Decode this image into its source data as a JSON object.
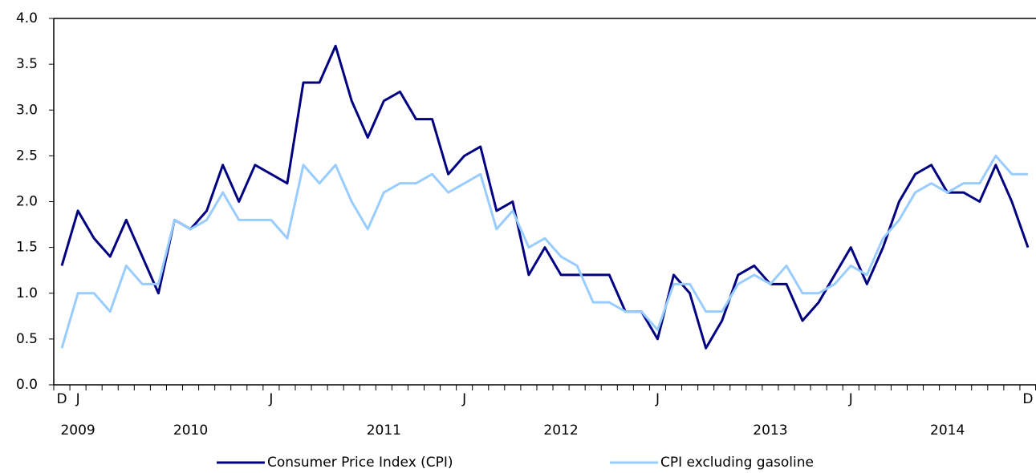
{
  "chart_data": {
    "type": "line",
    "categories": [
      "D",
      "J",
      null,
      null,
      null,
      null,
      null,
      null,
      null,
      null,
      null,
      null,
      null,
      "J",
      null,
      null,
      null,
      null,
      null,
      null,
      null,
      null,
      null,
      null,
      null,
      "J",
      null,
      null,
      null,
      null,
      null,
      null,
      null,
      null,
      null,
      null,
      null,
      "J",
      null,
      null,
      null,
      null,
      null,
      null,
      null,
      null,
      null,
      null,
      null,
      "J",
      null,
      null,
      null,
      null,
      null,
      null,
      null,
      null,
      null,
      null,
      "D"
    ],
    "year_labels": [
      null,
      "2009",
      null,
      null,
      null,
      null,
      null,
      null,
      "2010",
      null,
      null,
      null,
      null,
      null,
      null,
      null,
      null,
      null,
      null,
      null,
      "2011",
      null,
      null,
      null,
      null,
      null,
      null,
      null,
      null,
      null,
      null,
      "2012",
      null,
      null,
      null,
      null,
      null,
      null,
      null,
      null,
      null,
      null,
      null,
      null,
      "2013",
      null,
      null,
      null,
      null,
      null,
      null,
      null,
      null,
      null,
      null,
      "2014",
      null,
      null,
      null,
      null,
      null
    ],
    "series": [
      {
        "name": "Consumer Price Index (CPI)",
        "color": "#000080",
        "values": [
          1.3,
          1.9,
          1.6,
          1.4,
          1.8,
          1.4,
          1.0,
          1.8,
          1.7,
          1.9,
          2.4,
          2.0,
          2.4,
          2.3,
          2.2,
          3.3,
          3.3,
          3.7,
          3.1,
          2.7,
          3.1,
          3.2,
          2.9,
          2.9,
          2.3,
          2.5,
          2.6,
          1.9,
          2.0,
          1.2,
          1.5,
          1.2,
          1.2,
          1.2,
          1.2,
          0.8,
          0.8,
          0.5,
          1.2,
          1.0,
          0.4,
          0.7,
          1.2,
          1.3,
          1.1,
          1.1,
          0.7,
          0.9,
          1.2,
          1.5,
          1.1,
          1.5,
          2.0,
          2.3,
          2.4,
          2.1,
          2.1,
          2.0,
          2.4,
          2.0,
          1.5
        ]
      },
      {
        "name": "CPI excluding gasoline",
        "color": "#99ccff",
        "values": [
          0.4,
          1.0,
          1.0,
          0.8,
          1.3,
          1.1,
          1.1,
          1.8,
          1.7,
          1.8,
          2.1,
          1.8,
          1.8,
          1.8,
          1.6,
          2.4,
          2.2,
          2.4,
          2.0,
          1.7,
          2.1,
          2.2,
          2.2,
          2.3,
          2.1,
          2.2,
          2.3,
          1.7,
          1.9,
          1.5,
          1.6,
          1.4,
          1.3,
          0.9,
          0.9,
          0.8,
          0.8,
          0.6,
          1.1,
          1.1,
          0.8,
          0.8,
          1.1,
          1.2,
          1.1,
          1.3,
          1.0,
          1.0,
          1.1,
          1.3,
          1.2,
          1.6,
          1.8,
          2.1,
          2.2,
          2.1,
          2.2,
          2.2,
          2.5,
          2.3,
          2.3
        ]
      }
    ],
    "ylim": [
      0,
      4
    ],
    "yticks": [
      {
        "value": 0,
        "label": "0.0"
      },
      0.5,
      {
        "value": 1,
        "label": "1.0"
      },
      1.5,
      {
        "value": 2,
        "label": "2.0"
      },
      2.5,
      {
        "value": 3,
        "label": "3.0"
      },
      3.5,
      {
        "value": 4,
        "label": "4.0"
      }
    ],
    "grid": false,
    "legend": "bottom"
  }
}
